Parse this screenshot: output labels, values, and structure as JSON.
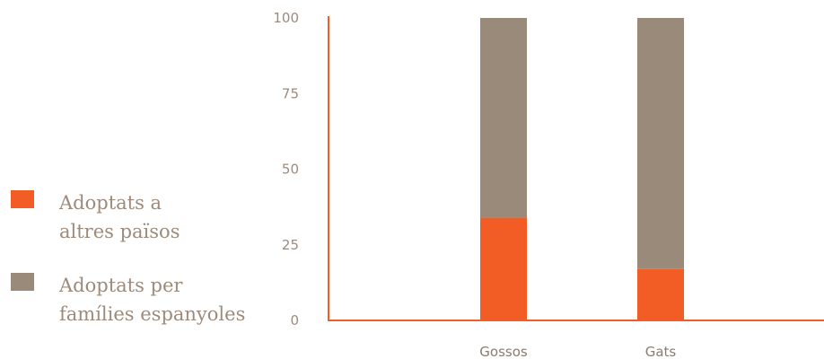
{
  "chart_data": {
    "type": "bar",
    "stacked": true,
    "categories": [
      "Gossos",
      "Gats"
    ],
    "series": [
      {
        "name": "Adoptats a altres països",
        "color": "#f25c25",
        "values": [
          34,
          17
        ]
      },
      {
        "name": "Adoptats per famílies espanyoles",
        "color": "#998a7a",
        "values": [
          66,
          83
        ]
      }
    ],
    "yticks": [
      "0",
      "25",
      "50",
      "75",
      "100"
    ],
    "ylim": [
      0,
      100
    ],
    "legend_position": "left",
    "axis_color": "#f25c25"
  },
  "legend": [
    {
      "line1": "Adoptats a",
      "line2": "altres països",
      "color": "#f25c25"
    },
    {
      "line1": "Adoptats per",
      "line2": "famílies espanyoles",
      "color": "#998a7a"
    }
  ]
}
